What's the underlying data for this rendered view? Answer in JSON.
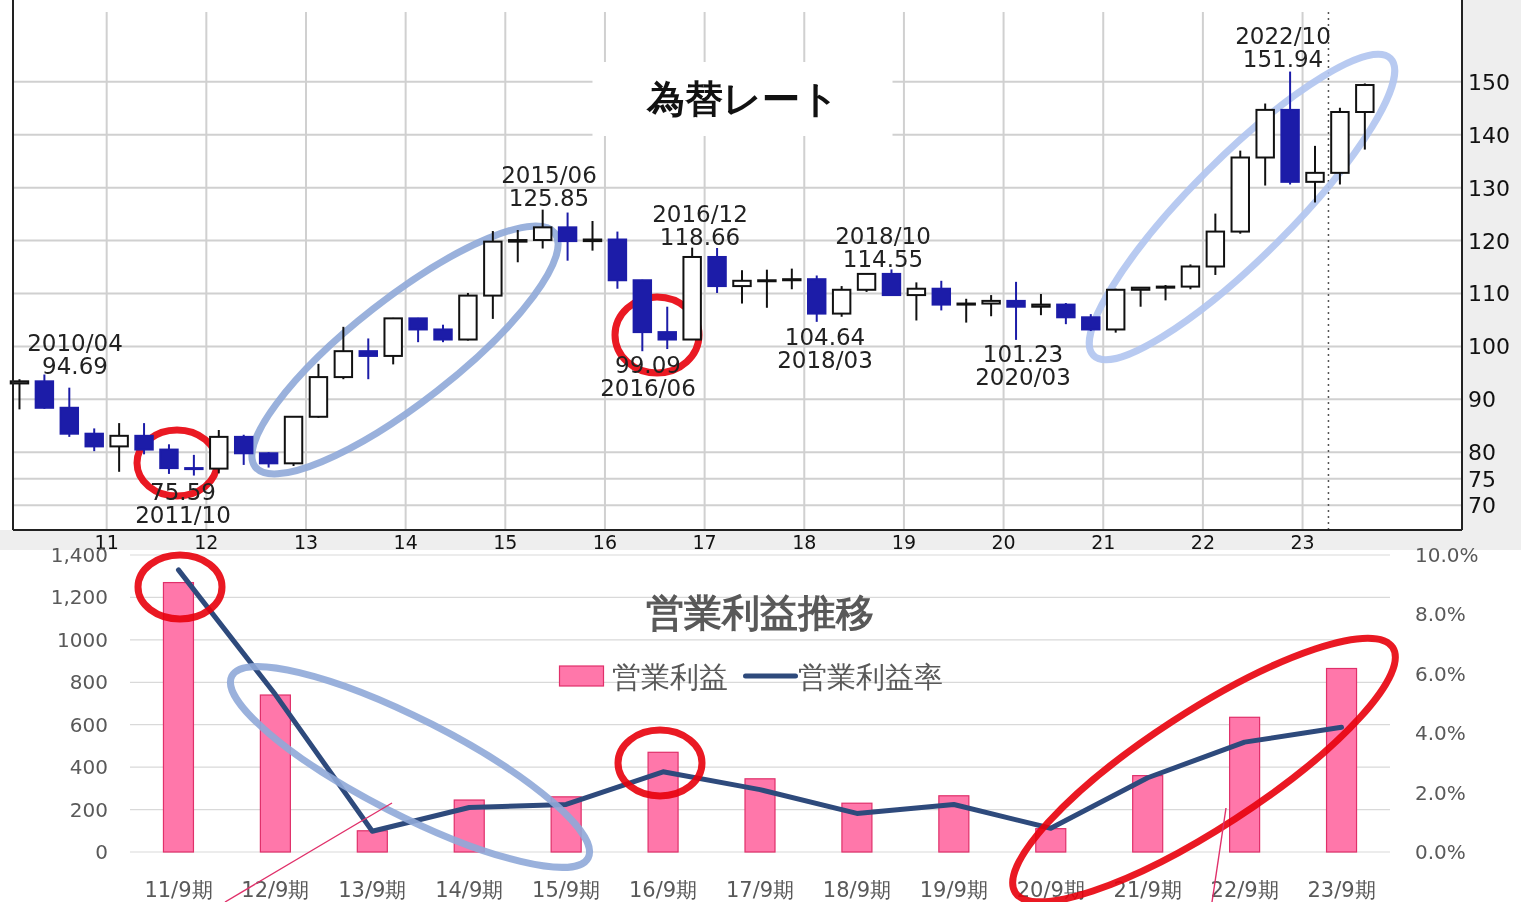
{
  "chart_data": [
    {
      "type": "candlestick",
      "title": "為替レート",
      "x": [
        2010.125,
        2010.375,
        2010.625,
        2010.875,
        2011.125,
        2011.375,
        2011.625,
        2011.875,
        2012.125,
        2012.375,
        2012.625,
        2012.875,
        2013.125,
        2013.375,
        2013.625,
        2013.875,
        2014.125,
        2014.375,
        2014.625,
        2014.875,
        2015.125,
        2015.375,
        2015.625,
        2015.875,
        2016.125,
        2016.375,
        2016.625,
        2016.875,
        2017.125,
        2017.375,
        2017.625,
        2017.875,
        2018.125,
        2018.375,
        2018.625,
        2018.875,
        2019.125,
        2019.375,
        2019.625,
        2019.875,
        2020.125,
        2020.375,
        2020.625,
        2020.875,
        2021.125,
        2021.375,
        2021.625,
        2021.875,
        2022.125,
        2022.375,
        2022.625,
        2022.875,
        2023.125,
        2023.375,
        2023.625
      ],
      "ohlc": [
        [
          93.0,
          93.8,
          88.1,
          93.4
        ],
        [
          93.4,
          94.69,
          88.2,
          88.4
        ],
        [
          88.4,
          92.2,
          82.9,
          83.5
        ],
        [
          83.5,
          84.5,
          80.2,
          81.1
        ],
        [
          81.1,
          85.5,
          76.3,
          83.1
        ],
        [
          83.1,
          85.5,
          79.6,
          80.5
        ],
        [
          80.5,
          81.5,
          75.9,
          77.0
        ],
        [
          77.0,
          79.5,
          75.59,
          76.9
        ],
        [
          76.9,
          84.2,
          76.0,
          82.9
        ],
        [
          82.9,
          83.3,
          77.6,
          79.8
        ],
        [
          79.8,
          80.0,
          77.1,
          77.9
        ],
        [
          77.9,
          86.8,
          77.4,
          86.7
        ],
        [
          86.7,
          96.7,
          86.5,
          94.2
        ],
        [
          94.2,
          103.7,
          93.8,
          99.1
        ],
        [
          99.1,
          101.5,
          93.8,
          98.2
        ],
        [
          98.2,
          105.4,
          96.6,
          105.3
        ],
        [
          105.3,
          105.4,
          100.8,
          103.2
        ],
        [
          103.2,
          104.1,
          100.8,
          101.3
        ],
        [
          101.3,
          110.1,
          101.1,
          109.6
        ],
        [
          109.6,
          121.8,
          105.2,
          119.8
        ],
        [
          119.8,
          122.0,
          115.9,
          120.1
        ],
        [
          120.1,
          125.85,
          118.5,
          122.5
        ],
        [
          122.5,
          125.3,
          116.2,
          119.9
        ],
        [
          119.9,
          123.7,
          118.1,
          120.2
        ],
        [
          120.2,
          121.7,
          110.9,
          112.5
        ],
        [
          112.5,
          112.6,
          99.09,
          102.7
        ],
        [
          102.7,
          107.5,
          99.5,
          101.3
        ],
        [
          101.3,
          118.66,
          101.2,
          116.9
        ],
        [
          116.9,
          118.6,
          110.1,
          111.4
        ],
        [
          111.4,
          114.4,
          108.1,
          112.4
        ],
        [
          112.4,
          114.5,
          107.3,
          112.5
        ],
        [
          112.5,
          114.7,
          110.8,
          112.7
        ],
        [
          112.7,
          113.4,
          104.64,
          106.2
        ],
        [
          106.2,
          111.4,
          105.6,
          110.7
        ],
        [
          110.7,
          113.7,
          110.3,
          113.7
        ],
        [
          113.7,
          114.55,
          109.6,
          109.7
        ],
        [
          109.7,
          112.1,
          104.9,
          110.9
        ],
        [
          110.9,
          112.4,
          106.8,
          107.9
        ],
        [
          107.9,
          109.0,
          104.5,
          108.1
        ],
        [
          108.1,
          109.7,
          105.7,
          108.6
        ],
        [
          108.6,
          112.2,
          101.23,
          107.5
        ],
        [
          107.5,
          109.9,
          105.9,
          107.9
        ],
        [
          107.9,
          108.2,
          104.2,
          105.5
        ],
        [
          105.5,
          106.1,
          102.9,
          103.2
        ],
        [
          103.2,
          110.9,
          102.6,
          110.7
        ],
        [
          110.7,
          111.1,
          107.5,
          111.1
        ],
        [
          111.1,
          111.6,
          108.7,
          111.3
        ],
        [
          111.3,
          115.5,
          110.8,
          115.1
        ],
        [
          115.1,
          125.1,
          113.5,
          121.7
        ],
        [
          121.7,
          137.0,
          121.3,
          135.7
        ],
        [
          135.7,
          145.9,
          130.4,
          144.7
        ],
        [
          144.7,
          151.94,
          130.6,
          131.1
        ],
        [
          131.1,
          137.9,
          127.2,
          132.8
        ],
        [
          132.8,
          145.1,
          130.6,
          144.3
        ],
        [
          144.3,
          149.7,
          137.2,
          149.4
        ]
      ],
      "colors": [
        "#ffffff",
        "#1c1ca8",
        "#1c1ca8",
        "#1c1ca8",
        "#ffffff",
        "#1c1ca8",
        "#1c1ca8",
        "#1c1ca8",
        "#ffffff",
        "#1c1ca8",
        "#1c1ca8",
        "#ffffff",
        "#ffffff",
        "#ffffff",
        "#1c1ca8",
        "#ffffff",
        "#1c1ca8",
        "#1c1ca8",
        "#ffffff",
        "#ffffff",
        "#ffffff",
        "#ffffff",
        "#1c1ca8",
        "#ffffff",
        "#1c1ca8",
        "#1c1ca8",
        "#1c1ca8",
        "#ffffff",
        "#1c1ca8",
        "#ffffff",
        "#ffffff",
        "#ffffff",
        "#1c1ca8",
        "#ffffff",
        "#ffffff",
        "#1c1ca8",
        "#ffffff",
        "#1c1ca8",
        "#ffffff",
        "#ffffff",
        "#1c1ca8",
        "#ffffff",
        "#1c1ca8",
        "#1c1ca8",
        "#ffffff",
        "#ffffff",
        "#ffffff",
        "#ffffff",
        "#ffffff",
        "#ffffff",
        "#ffffff",
        "#1c1ca8",
        "#ffffff",
        "#ffffff",
        "#ffffff"
      ],
      "xlim": [
        2010.06,
        2024.6
      ],
      "ylim": [
        65.3,
        163.2
      ],
      "xticks": [
        {
          "value": 2011,
          "label": "11"
        },
        {
          "value": 2012,
          "label": "12"
        },
        {
          "value": 2013,
          "label": "13"
        },
        {
          "value": 2014,
          "label": "14"
        },
        {
          "value": 2015,
          "label": "15"
        },
        {
          "value": 2016,
          "label": "16"
        },
        {
          "value": 2017,
          "label": "17"
        },
        {
          "value": 2018,
          "label": "18"
        },
        {
          "value": 2019,
          "label": "19"
        },
        {
          "value": 2020,
          "label": "20"
        },
        {
          "value": 2021,
          "label": "21"
        },
        {
          "value": 2022,
          "label": "22"
        },
        {
          "value": 2023,
          "label": "23"
        }
      ],
      "yticks": [
        70,
        {
          "value": 75,
          "label": "75"
        },
        80,
        90,
        100,
        110,
        120,
        130,
        140,
        150
      ],
      "grid": true,
      "ref_lines": [
        {
          "axis": "x",
          "value": 2023.26,
          "line_style": "dotted",
          "color": "#555555"
        }
      ],
      "annotations": [
        "2010/04\n94.69",
        "75.59\n2011/10",
        "2015/06\n125.85",
        "99.09\n2016/06",
        "2016/12\n118.66",
        "104.64\n2018/03",
        "2018/10\n114.55",
        "101.23\n2020/03",
        "2022/10\n151.94"
      ]
    },
    {
      "type": "bar",
      "title": "営業利益推移",
      "categories": [
        "11/9期",
        "12/9期",
        "13/9期",
        "14/9期",
        "15/9期",
        "16/9期",
        "17/9期",
        "18/9期",
        "19/9期",
        "20/9期",
        "21/9期",
        "22/9期",
        "23/9期"
      ],
      "series": [
        {
          "name": "営業利益",
          "color": "#ff77aa",
          "values": [
            1270,
            740,
            100,
            245,
            260,
            470,
            345,
            230,
            265,
            110,
            360,
            635,
            865
          ]
        },
        {
          "name": "営業利益率",
          "type": "line",
          "axis": "y2",
          "color": "#2e4a7c",
          "values": [
            9.5,
            5.3,
            0.7,
            1.5,
            1.6,
            2.7,
            2.1,
            1.3,
            1.6,
            0.8,
            2.5,
            3.7,
            4.2
          ]
        }
      ],
      "ylim": [
        0,
        1400
      ],
      "yticks": [
        0,
        200,
        400,
        600,
        800,
        1000,
        {
          "value": 1200,
          "label": "1,200"
        },
        {
          "value": 1400,
          "label": "1,400"
        }
      ],
      "y2lim": [
        0,
        10
      ],
      "y2ticks": [
        {
          "value": 0,
          "label": "0.0%"
        },
        {
          "value": 2,
          "label": "2.0%"
        },
        {
          "value": 4,
          "label": "4.0%"
        },
        {
          "value": 6,
          "label": "6.0%"
        },
        {
          "value": 8,
          "label": "8.0%"
        },
        {
          "value": 10,
          "label": "10.0%"
        }
      ],
      "grid": "y",
      "legend": "top"
    }
  ]
}
